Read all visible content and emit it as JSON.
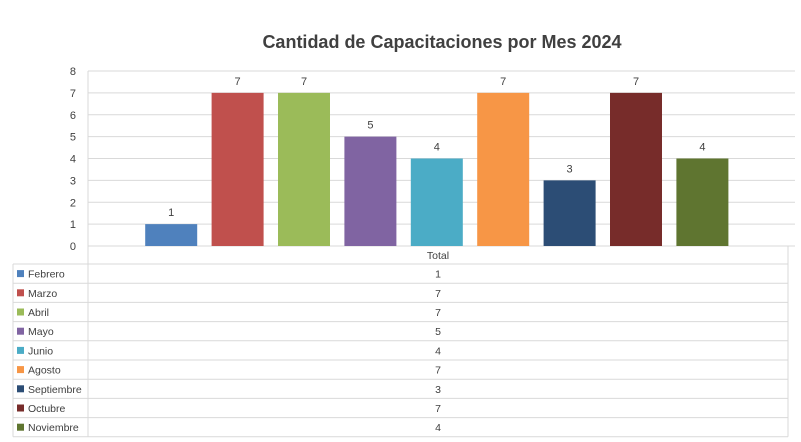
{
  "chart_data": {
    "type": "bar",
    "title": "Cantidad de Capacitaciones por Mes 2024",
    "category_label": "Total",
    "series": [
      {
        "name": "Febrero",
        "value": 1,
        "color": "#4F81BD"
      },
      {
        "name": "Marzo",
        "value": 7,
        "color": "#C0504D"
      },
      {
        "name": "Abril",
        "value": 7,
        "color": "#9BBB59"
      },
      {
        "name": "Mayo",
        "value": 5,
        "color": "#8064A2"
      },
      {
        "name": "Junio",
        "value": 4,
        "color": "#4BACC6"
      },
      {
        "name": "Agosto",
        "value": 7,
        "color": "#F79646"
      },
      {
        "name": "Septiembre",
        "value": 3,
        "color": "#2C4D75"
      },
      {
        "name": "Octubre",
        "value": 7,
        "color": "#772C2A"
      },
      {
        "name": "Noviembre",
        "value": 4,
        "color": "#5F7530"
      }
    ],
    "y_ticks": [
      "0",
      "1",
      "2",
      "3",
      "4",
      "5",
      "6",
      "7",
      "8"
    ],
    "ylim": [
      0,
      8
    ],
    "grid": true,
    "legend": "data-table-below"
  }
}
